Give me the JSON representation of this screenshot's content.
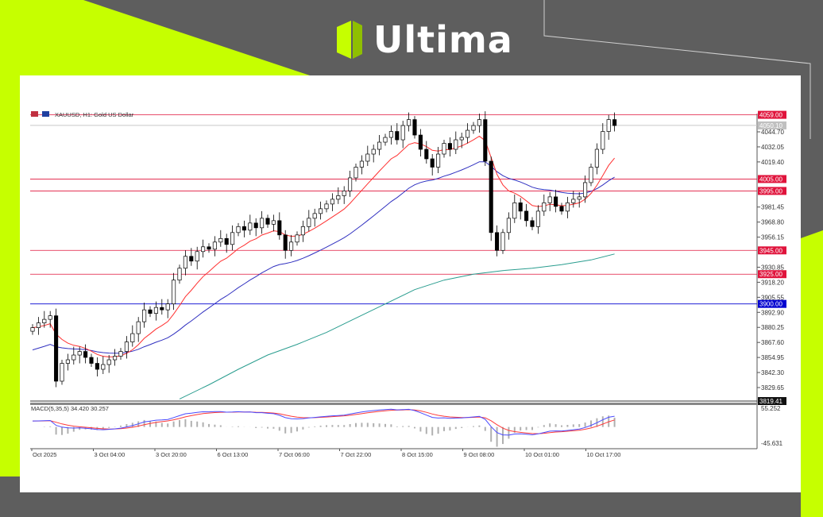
{
  "brand": {
    "name": "Ultima",
    "accent": "#c6ff00",
    "background": "#5e5e5e"
  },
  "chart_data": {
    "type": "candlestick",
    "symbol_label": "XAUUSD, H1:  Gold US Dollar",
    "y_ticks": [
      "4044.70",
      "4032.05",
      "4019.40",
      "3981.45",
      "3968.80",
      "3956.15",
      "3930.85",
      "3918.20",
      "3905.55",
      "3892.90",
      "3880.25",
      "3867.60",
      "3854.95",
      "3842.30",
      "3829.65"
    ],
    "ylim": [
      3819.41,
      4059.0
    ],
    "current_price_label": "4050.10",
    "bottom_price_label": "3819.41",
    "levels": [
      {
        "price": 4059.0,
        "label": "4059.00",
        "color": "#e0143c"
      },
      {
        "price": 4005.0,
        "label": "4005.00",
        "color": "#e0143c"
      },
      {
        "price": 3995.0,
        "label": "3995.00",
        "color": "#e0143c"
      },
      {
        "price": 3945.0,
        "label": "3945.00",
        "color": "#e0143c"
      },
      {
        "price": 3925.0,
        "label": "3925.00",
        "color": "#e0143c"
      },
      {
        "price": 3900.0,
        "label": "3900.00",
        "color": "#0000d0"
      }
    ],
    "x_labels": [
      "Oct 2025",
      "3 Oct 04:00",
      "3 Oct 20:00",
      "6 Oct 13:00",
      "7 Oct 06:00",
      "7 Oct 22:00",
      "8 Oct 15:00",
      "9 Oct 08:00",
      "10 Oct 01:00",
      "10 Oct 17:00"
    ],
    "closes": [
      3880,
      3884,
      3887,
      3890,
      3835,
      3850,
      3853,
      3857,
      3860,
      3855,
      3850,
      3845,
      3849,
      3853,
      3856,
      3860,
      3868,
      3875,
      3885,
      3895,
      3892,
      3897,
      3895,
      3900,
      3920,
      3930,
      3940,
      3936,
      3944,
      3948,
      3946,
      3952,
      3955,
      3950,
      3960,
      3965,
      3962,
      3968,
      3964,
      3972,
      3967,
      3970,
      3958,
      3945,
      3952,
      3958,
      3965,
      3972,
      3976,
      3980,
      3984,
      3988,
      3991,
      3995,
      4006,
      4015,
      4020,
      4026,
      4030,
      4036,
      4040,
      4045,
      4038,
      4050,
      4055,
      4042,
      4030,
      4022,
      4015,
      4026,
      4035,
      4030,
      4038,
      4040,
      4046,
      4050,
      4055,
      4020,
      3960,
      3945,
      3960,
      3972,
      3985,
      3978,
      3970,
      3965,
      3978,
      3985,
      3990,
      3982,
      3978,
      3985,
      3988,
      3990,
      4002,
      4015,
      4030,
      4045,
      4055,
      4050
    ],
    "ma_long": {
      "start_index": 25,
      "step": 5,
      "values": [
        3820,
        3832,
        3845,
        3857,
        3866,
        3876,
        3888,
        3900,
        3912,
        3920,
        3925,
        3928,
        3930,
        3933,
        3937,
        3942
      ]
    },
    "series_colors": {
      "ma_fast": "#ff3030",
      "ma_mid": "#3030c0",
      "ma_long": "#2a9d8f",
      "macd": "#4a4aff",
      "signal": "#ff3a3a",
      "histogram": "#b0b0b0"
    },
    "macd": {
      "label": "MACD(5,35,5) 34.420 30.257",
      "max_label": "55.252",
      "min_label": "-45.631",
      "range": [
        -45.631,
        55.252
      ]
    }
  }
}
